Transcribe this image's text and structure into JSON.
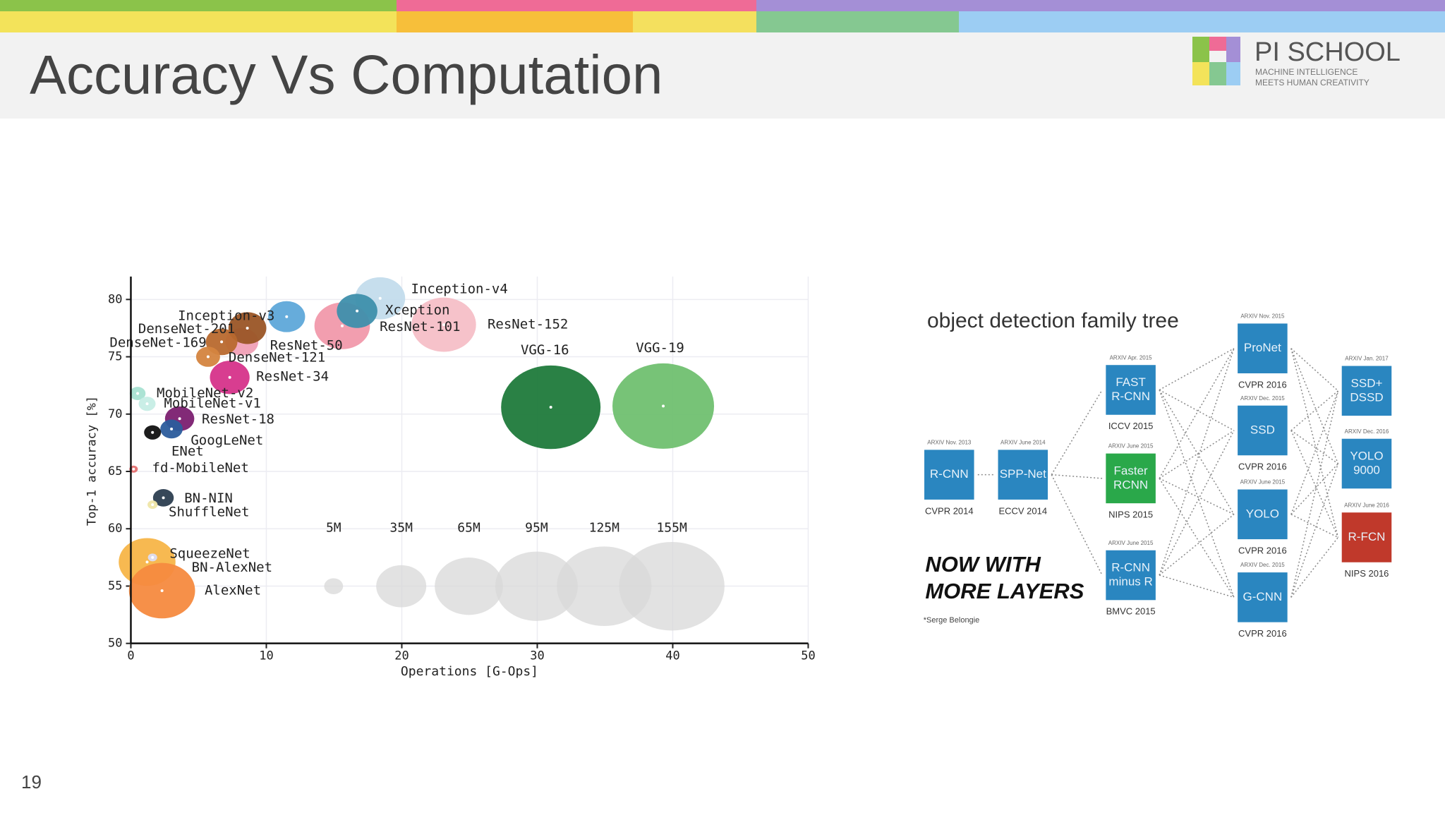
{
  "header": {
    "title": "Accuracy Vs Computation",
    "logo": {
      "name": "PI SCHOOL",
      "tagline": [
        "MACHINE INTELLIGENCE",
        "MEETS HUMAN CREATIVITY"
      ]
    }
  },
  "page_number": "19",
  "chart_data": {
    "type": "bubble",
    "xlabel": "Operations [G-Ops]",
    "ylabel": "Top-1 accuracy [%]",
    "xlim": [
      0,
      50
    ],
    "ylim": [
      50,
      82
    ],
    "xticks": [
      0,
      10,
      20,
      30,
      40,
      50
    ],
    "yticks": [
      50,
      55,
      60,
      65,
      70,
      75,
      80
    ],
    "grid": true,
    "labels": [
      "Inception-v4",
      "ResNet-152",
      "ResNet-101",
      "Xception",
      "Inception-v3",
      "ResNet-50",
      "DenseNet-201",
      "DenseNet-169",
      "DenseNet-121",
      "ResNet-34",
      "MobileNet-v2",
      "MobileNet-v1",
      "ResNet-18",
      "GoogLeNet",
      "ENet",
      "fd-MobileNet",
      "BN-NIN",
      "ShuffleNet",
      "BN-AlexNet",
      "AlexNet",
      "SqueezeNet",
      "VGG-16",
      "VGG-19"
    ],
    "x": [
      18.4,
      23.1,
      15.6,
      16.7,
      11.5,
      8.2,
      8.6,
      6.7,
      5.7,
      7.3,
      0.5,
      1.2,
      3.6,
      3.0,
      1.6,
      0.2,
      2.4,
      1.6,
      1.2,
      2.3,
      1.6,
      31.0,
      39.3
    ],
    "values": [
      80.1,
      77.8,
      77.7,
      79.0,
      78.5,
      76.3,
      77.5,
      76.3,
      75.0,
      73.2,
      71.8,
      70.9,
      69.6,
      68.7,
      68.4,
      65.2,
      62.7,
      62.1,
      57.1,
      54.6,
      57.5,
      70.6,
      70.7
    ],
    "sizes": [
      35,
      58,
      43,
      23,
      19,
      15,
      20,
      14,
      8,
      22,
      3.5,
      4,
      12,
      7,
      4,
      1,
      6,
      1.4,
      45,
      61,
      1.2,
      138,
      144
    ],
    "colors": [
      "#c3dcec",
      "#f6bfc7",
      "#f199ab",
      "#3e8fac",
      "#5ea8d9",
      "#f0a0b6",
      "#9a5526",
      "#b8692e",
      "#d4843f",
      "#d6338a",
      "#a8e2d2",
      "#c6ede5",
      "#7b1f70",
      "#2b5c9c",
      "#111111",
      "#e47070",
      "#2c3e50",
      "#efe6a8",
      "#f7b548",
      "#f58a3f",
      "#dcdcf2",
      "#1f7a3b",
      "#70c070"
    ],
    "size_legend": [
      {
        "value": 5,
        "label": "5M"
      },
      {
        "value": 35,
        "label": "35M"
      },
      {
        "value": 65,
        "label": "65M"
      },
      {
        "value": 95,
        "label": "95M"
      },
      {
        "value": 125,
        "label": "125M"
      },
      {
        "value": 155,
        "label": "155M"
      }
    ]
  },
  "diagram": {
    "title": "object detection family tree",
    "nodes": [
      {
        "label": [
          "R-CNN"
        ],
        "arxiv": "ARXIV Nov. 2013",
        "venue": "CVPR 2014",
        "color": "#2a86c0"
      },
      {
        "label": [
          "SPP-Net"
        ],
        "arxiv": "ARXIV June 2014",
        "venue": "ECCV 2014",
        "color": "#2a86c0"
      },
      {
        "label": [
          "FAST",
          "R-CNN"
        ],
        "arxiv": "ARXIV Apr. 2015",
        "venue": "ICCV 2015",
        "color": "#2a86c0"
      },
      {
        "label": [
          "Faster",
          "RCNN"
        ],
        "arxiv": "ARXIV June 2015",
        "venue": "NIPS 2015",
        "color": "#2aa84a"
      },
      {
        "label": [
          "R-CNN",
          "minus R"
        ],
        "arxiv": "ARXIV June 2015",
        "venue": "BMVC 2015",
        "color": "#2a86c0"
      },
      {
        "label": [
          "ProNet"
        ],
        "arxiv": "ARXIV Nov. 2015",
        "venue": "CVPR 2016",
        "color": "#2a86c0"
      },
      {
        "label": [
          "SSD"
        ],
        "arxiv": "ARXIV Dec. 2015",
        "venue": "CVPR 2016",
        "color": "#2a86c0"
      },
      {
        "label": [
          "YOLO"
        ],
        "arxiv": "ARXIV June 2015",
        "venue": "CVPR 2016",
        "color": "#2a86c0"
      },
      {
        "label": [
          "G-CNN"
        ],
        "arxiv": "ARXIV Dec. 2015",
        "venue": "CVPR 2016",
        "color": "#2a86c0"
      },
      {
        "label": [
          "SSD+",
          "DSSD"
        ],
        "arxiv": "ARXIV Jan. 2017",
        "color": "#2a86c0"
      },
      {
        "label": [
          "YOLO",
          "9000"
        ],
        "arxiv": "ARXIV Dec. 2016",
        "color": "#2a86c0"
      },
      {
        "label": [
          "R-FCN"
        ],
        "arxiv": "ARXIV June 2016",
        "venue": "NIPS 2016",
        "color": "#c0392b"
      }
    ],
    "caption": [
      "NOW WITH",
      "MORE LAYERS"
    ],
    "credit": "*Serge Belongie"
  }
}
